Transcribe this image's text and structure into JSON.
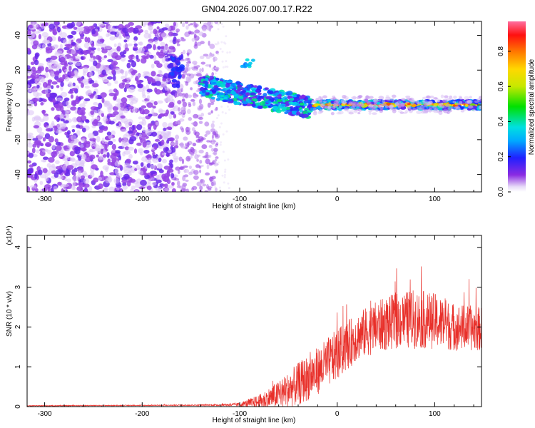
{
  "title": "GN04.2026.007.00.17.R22",
  "chart_data": [
    {
      "type": "heatmap",
      "name": "spectrogram",
      "xlabel": "Height of straight line (km)",
      "ylabel": "Frequency (Hz)",
      "xlim": [
        -318,
        148
      ],
      "ylim": [
        -50,
        48
      ],
      "x_ticks": [
        -300,
        -200,
        -100,
        0,
        100
      ],
      "y_ticks": [
        -40,
        -20,
        0,
        20,
        40
      ],
      "colorbar": {
        "label": "Normalized spectral amplitude",
        "range": [
          0,
          0.97
        ],
        "ticks": [
          0.0,
          0.2,
          0.4,
          0.6,
          0.8
        ]
      },
      "regions": [
        {
          "desc": "scattered noise",
          "x": [
            -318,
            -165
          ],
          "freq": [
            -50,
            48
          ],
          "amplitude": 0.12
        },
        {
          "desc": "scattered noise",
          "x": [
            -165,
            -125
          ],
          "freq": [
            -50,
            48
          ],
          "amplitude": 0.08
        },
        {
          "desc": "blob",
          "x": [
            -175,
            -160
          ],
          "freq": [
            10,
            28
          ],
          "amplitude": 0.2
        },
        {
          "desc": "blob",
          "x": [
            -98,
            -88
          ],
          "freq": [
            22,
            26
          ],
          "amplitude": 0.3
        },
        {
          "desc": "descending band",
          "x": [
            -140,
            -25
          ],
          "freq": [
            -5,
            14
          ],
          "amplitude": 0.35
        },
        {
          "desc": "carrier line",
          "x": [
            -25,
            148
          ],
          "freq": [
            -2,
            2
          ],
          "amplitude": 0.85
        }
      ]
    },
    {
      "type": "line",
      "name": "snr",
      "xlabel": "Height of straight line (km)",
      "ylabel": "SNR (10 * v/v)",
      "y_multiplier": "(x10⁴)",
      "xlim": [
        -318,
        148
      ],
      "ylim": [
        0,
        4.3
      ],
      "x_ticks": [
        -300,
        -200,
        -100,
        0,
        100
      ],
      "y_ticks": [
        0,
        1,
        2,
        3,
        4
      ],
      "color": "#e8302a",
      "envelope": {
        "x": [
          -318,
          -200,
          -120,
          -100,
          -80,
          -60,
          -40,
          -20,
          0,
          20,
          40,
          60,
          80,
          100,
          120,
          148
        ],
        "mean": [
          0.02,
          0.03,
          0.04,
          0.05,
          0.12,
          0.3,
          0.55,
          0.9,
          1.3,
          1.75,
          2.0,
          2.15,
          2.2,
          2.15,
          2.0,
          1.95
        ],
        "spread": [
          0.01,
          0.01,
          0.02,
          0.05,
          0.18,
          0.35,
          0.55,
          0.6,
          0.65,
          0.6,
          0.65,
          0.7,
          0.75,
          0.7,
          0.6,
          0.55
        ]
      }
    }
  ]
}
